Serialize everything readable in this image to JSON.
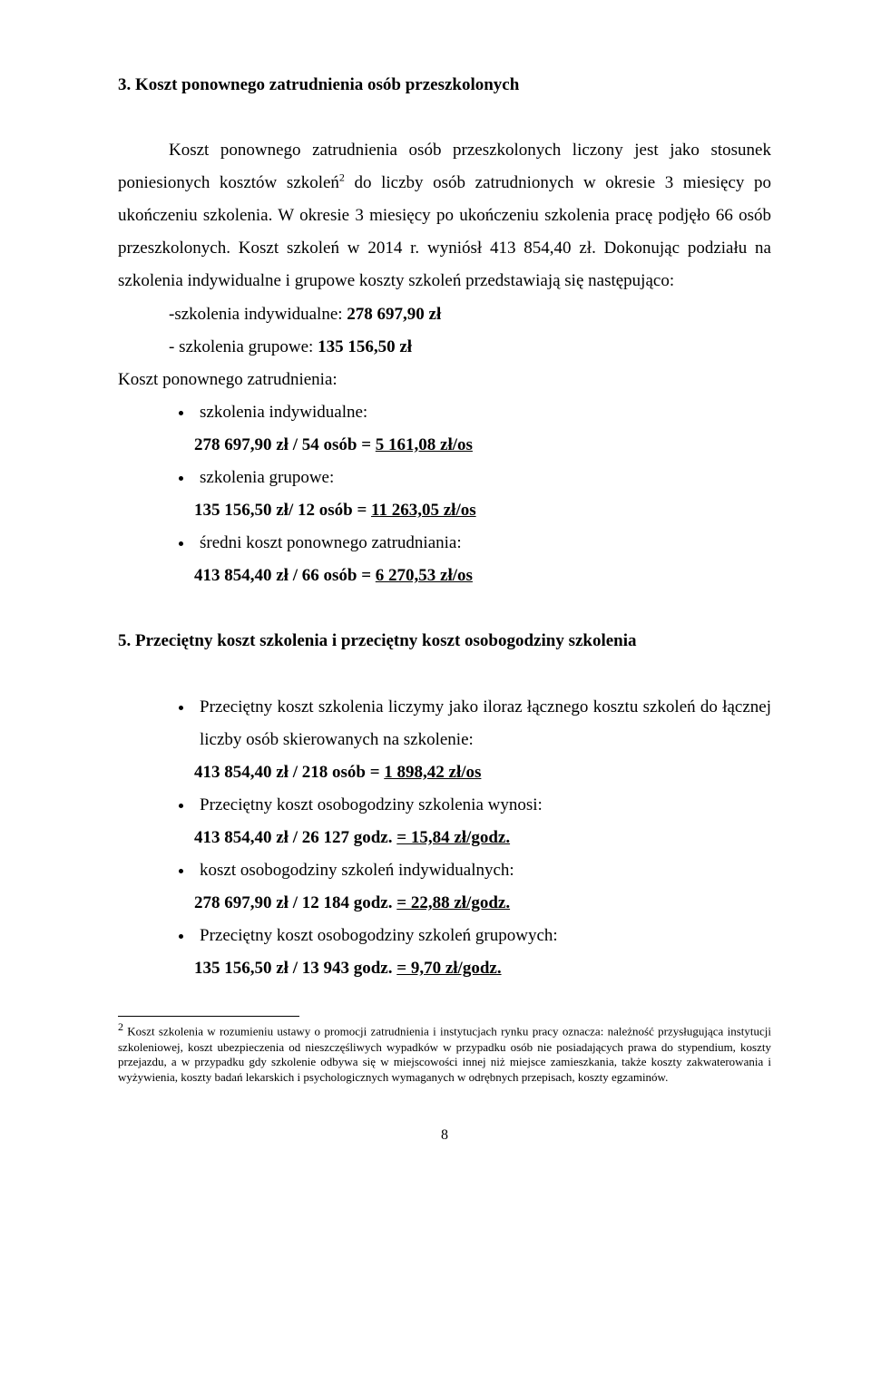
{
  "heading3": "3.  Koszt ponownego zatrudnienia osób przeszkolonych",
  "para1_a": "Koszt ponownego zatrudnienia osób przeszkolonych liczony jest jako stosunek poniesionych kosztów szkoleń",
  "para1_sup": "2",
  "para1_b": " do liczby osób zatrudnionych w okresie 3 miesięcy po ukończeniu szkolenia. W okresie 3 miesięcy po ukończeniu szkolenia pracę podjęło 66 osób przeszkolonych. Koszt szkoleń w 2014 r. wyniósł 413 854,40 zł. Dokonując podziału na szkolenia indywidualne i grupowe koszty szkoleń przedstawiają się następująco:",
  "indent1": "-szkolenia indywidualne: ",
  "indent1_b": "278 697,90 zł",
  "indent2": "- szkolenia grupowe: ",
  "indent2_b": "135 156,50 zł",
  "line_kpz": "Koszt ponownego zatrudnienia:",
  "b1": "szkolenia indywidualne:",
  "b1_sub_a": "278 697,90 zł / 54 osób = ",
  "b1_sub_u": "5 161,08 zł/os",
  "b2": "szkolenia grupowe:",
  "b2_sub_a": "135 156,50 zł/ 12 osób = ",
  "b2_sub_u": "11 263,05 zł/os",
  "b3": "średni koszt ponownego zatrudniania:",
  "b3_sub_a": "413 854,40  zł / 66 osób = ",
  "b3_sub_u": "6 270,53 zł/os",
  "heading5": "5. Przeciętny koszt szkolenia i przeciętny koszt osobogodziny szkolenia",
  "s5_b1_a": "Przeciętny koszt szkolenia liczymy jako iloraz łącznego kosztu szkoleń do łącznej liczby osób skierowanych na szkolenie:",
  "s5_b1_sub_a": "413 854,40  zł / 218 osób = ",
  "s5_b1_sub_u": "1 898,42 zł/os",
  "s5_b2": "Przeciętny koszt osobogodziny szkolenia wynosi:",
  "s5_b2_sub_a": "413 854,40  zł / 26 127 godz. ",
  "s5_b2_sub_u": "= 15,84 zł/godz.",
  "s5_b3": "koszt osobogodziny szkoleń indywidualnych:",
  "s5_b3_sub_a": "278 697,90 zł /  12 184 godz.  ",
  "s5_b3_sub_u": "= 22,88 zł/godz.",
  "s5_b4": "Przeciętny koszt osobogodziny szkoleń grupowych:",
  "s5_b4_sub_a": "135 156,50 zł / 13 943 godz. ",
  "s5_b4_sub_u": "= 9,70 zł/godz.",
  "footnote_sup": "2",
  "footnote": " Koszt szkolenia w rozumieniu ustawy o promocji zatrudnienia i instytucjach rynku pracy oznacza: należność przysługująca instytucji szkoleniowej, koszt ubezpieczenia od nieszczęśliwych wypadków w przypadku osób nie posiadających prawa do stypendium, koszty przejazdu, a w przypadku gdy szkolenie odbywa się w miejscowości innej niż miejsce zamieszkania, także koszty zakwaterowania i wyżywienia, koszty badań lekarskich i psychologicznych wymaganych w odrębnych przepisach, koszty egzaminów.",
  "page_number": "8"
}
